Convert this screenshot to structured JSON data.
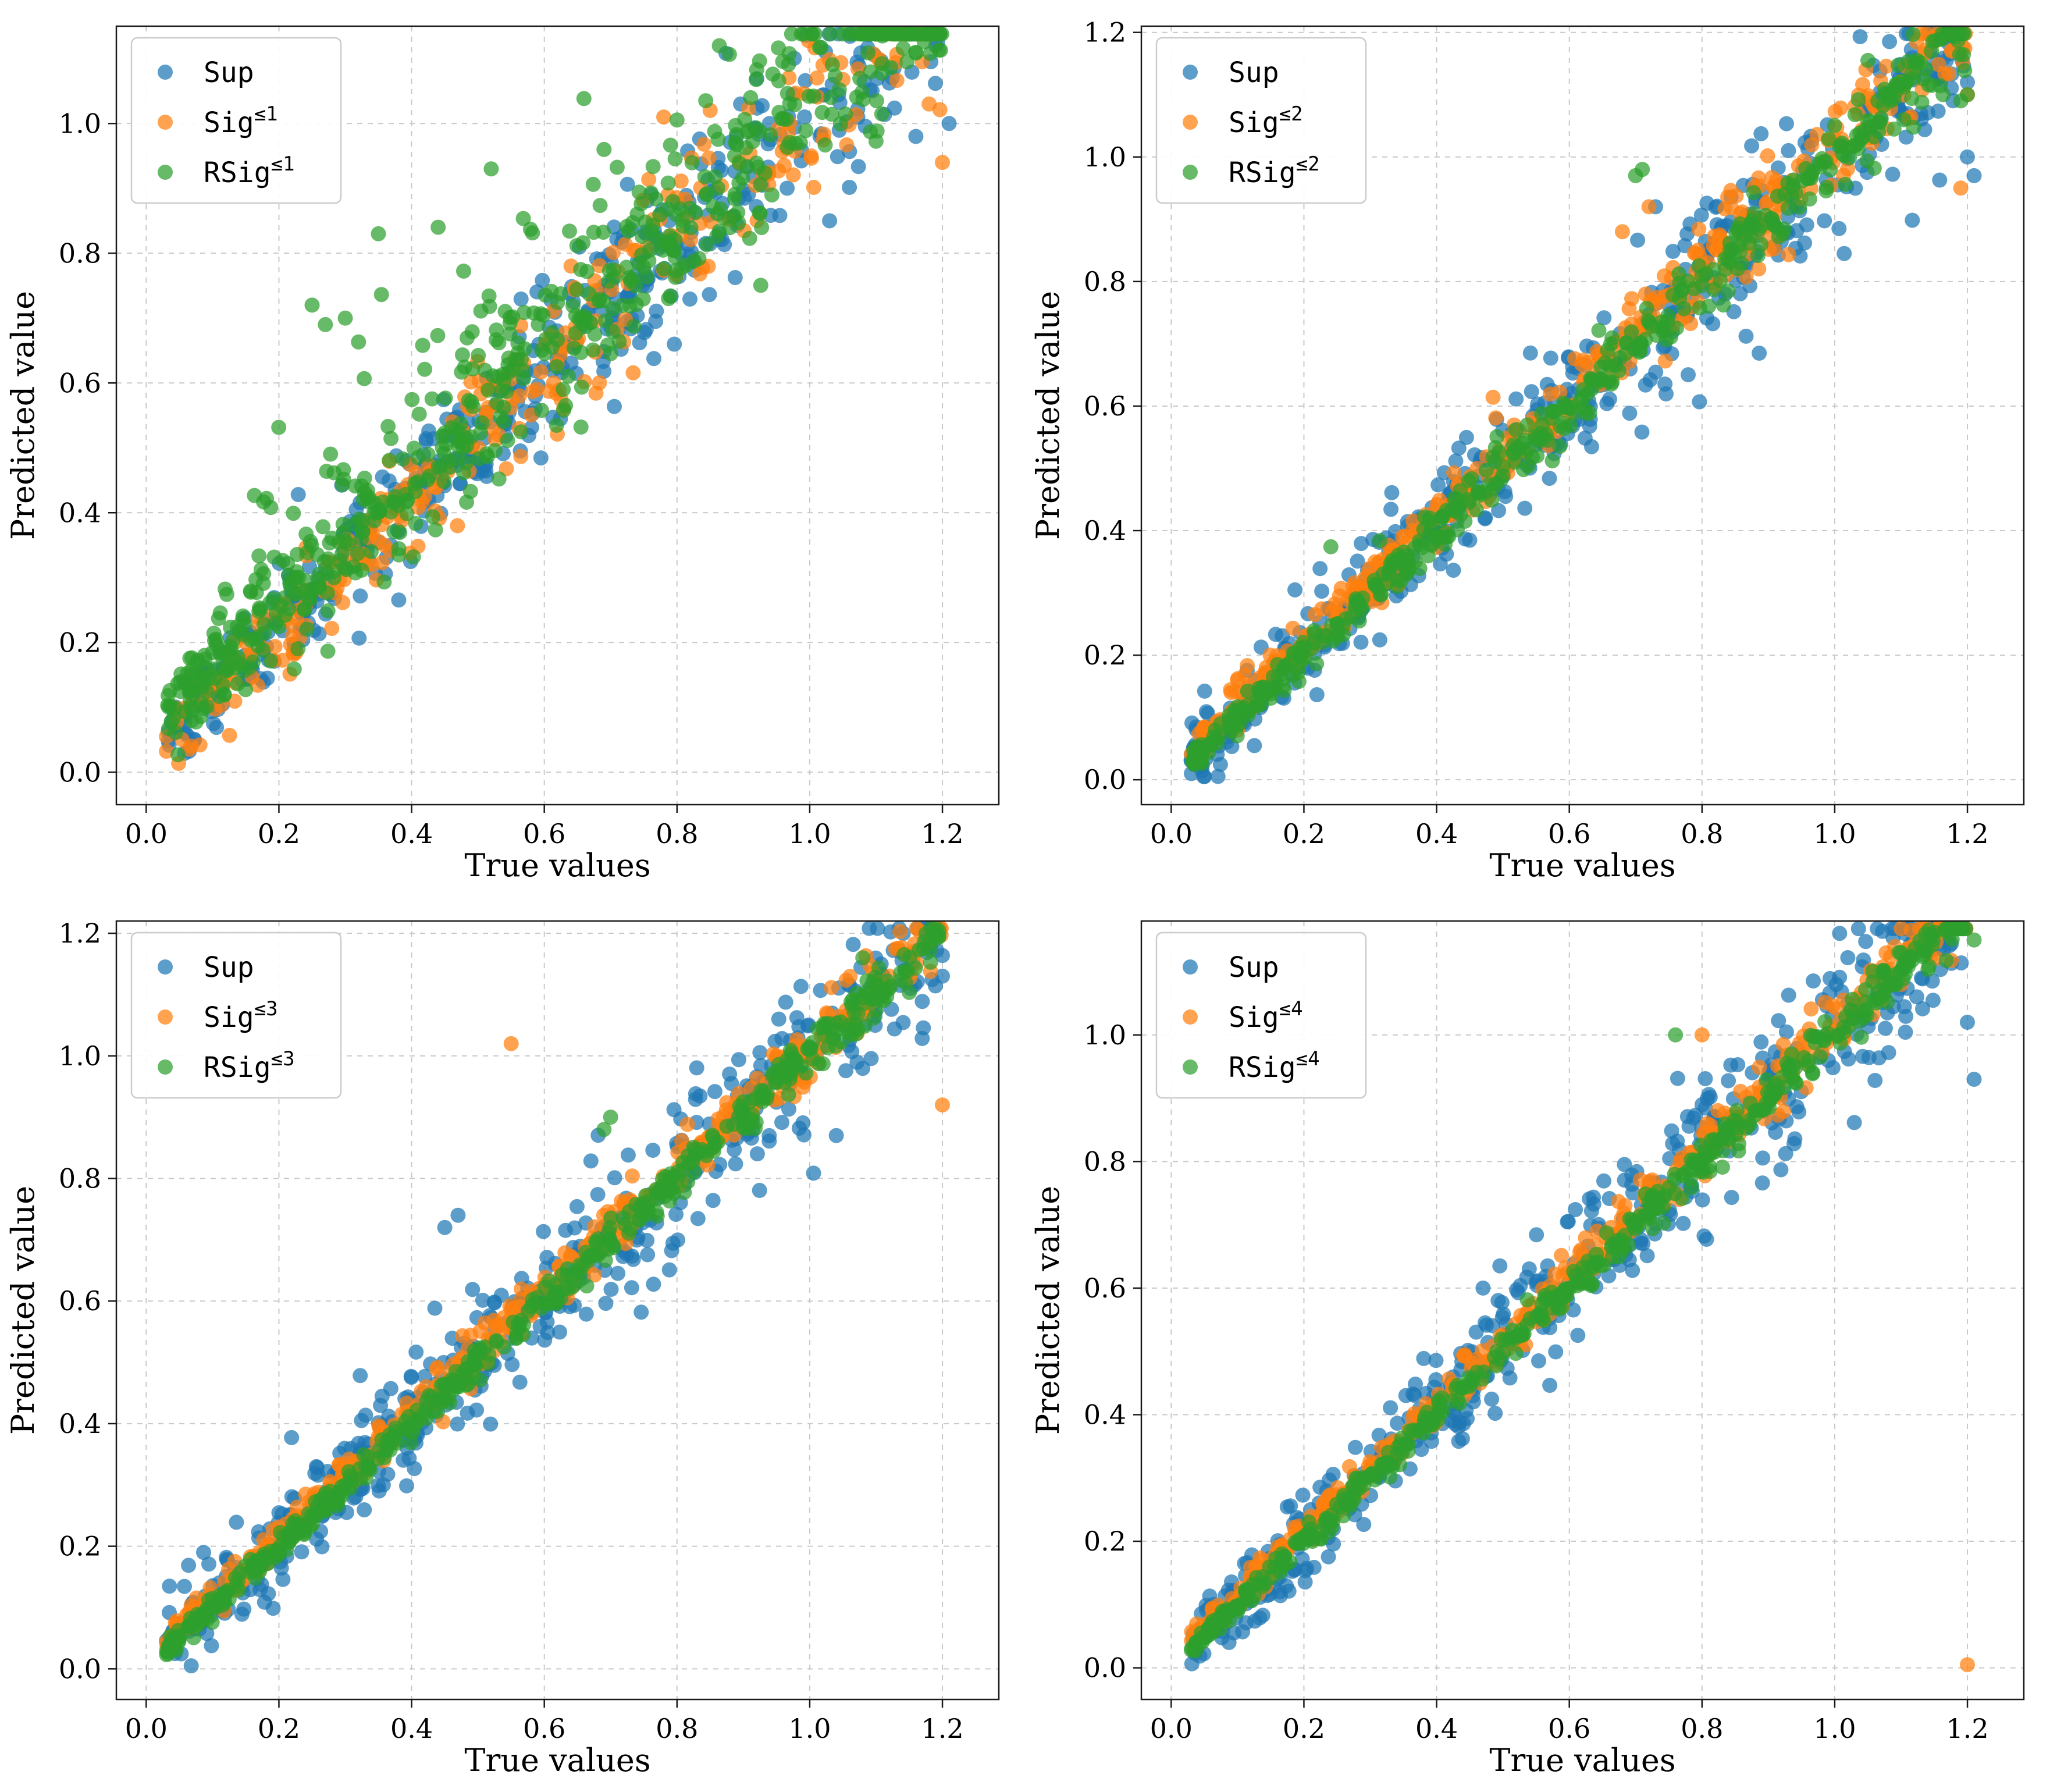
{
  "figure": {
    "background": "#ffffff",
    "grid_color": "#c9c9c9",
    "spine_color": "#1a1a1a",
    "marker_radius": 13,
    "marker_alpha": 0.72
  },
  "chart_data": [
    {
      "type": "scatter",
      "title": "",
      "xlabel": "True values",
      "ylabel": "Predicted value",
      "xlim": [
        -0.045,
        1.285
      ],
      "ylim": [
        -0.05,
        1.15
      ],
      "xticks": [
        0.0,
        0.2,
        0.4,
        0.6,
        0.8,
        1.0,
        1.2
      ],
      "yticks": [
        0.0,
        0.2,
        0.4,
        0.6,
        0.8,
        1.0
      ],
      "grid": true,
      "legend_position": "upper-left",
      "series": [
        {
          "name": "Sup",
          "label_base": "Sup",
          "label_sup": "",
          "color": "#1f77b4",
          "count": 520,
          "seed": 101,
          "noise": 0.055,
          "bias": 0.025,
          "outlier_frac": 0.02,
          "outlier_boost": 0.12,
          "extra": [
            [
              1.19,
              1.12
            ],
            [
              1.21,
              1.0
            ],
            [
              1.16,
              0.98
            ],
            [
              1.03,
              0.85
            ]
          ]
        },
        {
          "name": "Sig<=1",
          "label_base": "Sig",
          "label_sup": "≤1",
          "color": "#ff7f0e",
          "count": 300,
          "seed": 102,
          "noise": 0.05,
          "bias": 0.02,
          "outlier_frac": 0.0,
          "outlier_boost": 0,
          "extra": [
            [
              0.85,
              1.02
            ],
            [
              1.02,
              1.09
            ],
            [
              1.18,
              1.03
            ],
            [
              1.2,
              0.94
            ],
            [
              0.78,
              1.01
            ]
          ]
        },
        {
          "name": "RSig<=1",
          "label_base": "RSig",
          "label_sup": "≤1",
          "color": "#2ca02c",
          "count": 620,
          "seed": 103,
          "noise": 0.06,
          "bias": 0.05,
          "outlier_frac": 0.09,
          "outlier_boost": 0.22,
          "extra": [
            [
              0.52,
              0.93
            ],
            [
              0.3,
              0.7
            ],
            [
              0.27,
              0.69
            ],
            [
              0.25,
              0.72
            ],
            [
              0.35,
              0.83
            ],
            [
              0.44,
              0.84
            ],
            [
              0.69,
              0.96
            ]
          ]
        }
      ]
    },
    {
      "type": "scatter",
      "title": "",
      "xlabel": "True values",
      "ylabel": "Predicted value",
      "xlim": [
        -0.045,
        1.285
      ],
      "ylim": [
        -0.04,
        1.21
      ],
      "xticks": [
        0.0,
        0.2,
        0.4,
        0.6,
        0.8,
        1.0,
        1.2
      ],
      "yticks": [
        0.0,
        0.2,
        0.4,
        0.6,
        0.8,
        1.0,
        1.2
      ],
      "grid": true,
      "legend_position": "upper-left",
      "series": [
        {
          "name": "Sup",
          "label_base": "Sup",
          "label_sup": "",
          "color": "#1f77b4",
          "count": 520,
          "seed": 201,
          "noise": 0.05,
          "bias": 0.005,
          "outlier_frac": 0.015,
          "outlier_boost": 0.1,
          "extra": [
            [
              1.2,
              1.12
            ],
            [
              1.2,
              1.0
            ],
            [
              1.21,
              0.97
            ],
            [
              0.73,
              0.92
            ]
          ]
        },
        {
          "name": "Sig<=2",
          "label_base": "Sig",
          "label_sup": "≤2",
          "color": "#ff7f0e",
          "count": 420,
          "seed": 202,
          "noise": 0.027,
          "bias": 0.02,
          "outlier_frac": 0.0,
          "outlier_boost": 0,
          "extra": [
            [
              1.2,
              1.1
            ],
            [
              1.19,
              0.95
            ],
            [
              0.72,
              0.92
            ],
            [
              0.68,
              0.88
            ]
          ]
        },
        {
          "name": "RSig<=2",
          "label_base": "RSig",
          "label_sup": "≤2",
          "color": "#2ca02c",
          "count": 480,
          "seed": 203,
          "noise": 0.02,
          "bias": 0.0,
          "outlier_frac": 0.008,
          "outlier_boost": 0.12,
          "extra": [
            [
              1.05,
              1.155
            ],
            [
              1.2,
              1.1
            ],
            [
              1.19,
              1.09
            ],
            [
              0.71,
              0.98
            ],
            [
              0.7,
              0.97
            ]
          ]
        }
      ]
    },
    {
      "type": "scatter",
      "title": "",
      "xlabel": "True values",
      "ylabel": "Predicted value",
      "xlim": [
        -0.045,
        1.285
      ],
      "ylim": [
        -0.05,
        1.22
      ],
      "xticks": [
        0.0,
        0.2,
        0.4,
        0.6,
        0.8,
        1.0,
        1.2
      ],
      "yticks": [
        0.0,
        0.2,
        0.4,
        0.6,
        0.8,
        1.0,
        1.2
      ],
      "grid": true,
      "legend_position": "upper-left",
      "series": [
        {
          "name": "Sup",
          "label_base": "Sup",
          "label_sup": "",
          "color": "#1f77b4",
          "count": 520,
          "seed": 301,
          "noise": 0.05,
          "bias": 0.01,
          "outlier_frac": 0.015,
          "outlier_boost": 0.1,
          "extra": [
            [
              1.2,
              1.13
            ],
            [
              0.47,
              0.74
            ],
            [
              0.45,
              0.72
            ],
            [
              1.04,
              0.87
            ]
          ]
        },
        {
          "name": "Sig<=3",
          "label_base": "Sig",
          "label_sup": "≤3",
          "color": "#ff7f0e",
          "count": 420,
          "seed": 302,
          "noise": 0.02,
          "bias": 0.015,
          "outlier_frac": 0.0,
          "outlier_boost": 0,
          "extra": [
            [
              1.2,
              0.92
            ],
            [
              1.05,
              1.06
            ],
            [
              0.95,
              1.0
            ],
            [
              1.12,
              1.13
            ],
            [
              0.55,
              1.02
            ]
          ]
        },
        {
          "name": "RSig<=3",
          "label_base": "RSig",
          "label_sup": "≤3",
          "color": "#2ca02c",
          "count": 500,
          "seed": 303,
          "noise": 0.014,
          "bias": 0.0,
          "outlier_frac": 0.006,
          "outlier_boost": 0.1,
          "extra": [
            [
              1.08,
              1.16
            ],
            [
              0.7,
              0.9
            ],
            [
              0.69,
              0.88
            ]
          ]
        }
      ]
    },
    {
      "type": "scatter",
      "title": "",
      "xlabel": "True values",
      "ylabel": "Predicted value",
      "xlim": [
        -0.045,
        1.285
      ],
      "ylim": [
        -0.05,
        1.18
      ],
      "xticks": [
        0.0,
        0.2,
        0.4,
        0.6,
        0.8,
        1.0,
        1.2
      ],
      "yticks": [
        0.0,
        0.2,
        0.4,
        0.6,
        0.8,
        1.0
      ],
      "grid": true,
      "legend_position": "upper-left",
      "series": [
        {
          "name": "Sup",
          "label_base": "Sup",
          "label_sup": "",
          "color": "#1f77b4",
          "count": 520,
          "seed": 401,
          "noise": 0.05,
          "bias": 0.01,
          "outlier_frac": 0.015,
          "outlier_boost": 0.1,
          "extra": [
            [
              1.2,
              1.02
            ],
            [
              1.21,
              0.93
            ],
            [
              0.55,
              0.61
            ],
            [
              0.47,
              0.6
            ]
          ]
        },
        {
          "name": "Sig<=4",
          "label_base": "Sig",
          "label_sup": "≤4",
          "color": "#ff7f0e",
          "count": 420,
          "seed": 402,
          "noise": 0.018,
          "bias": 0.015,
          "outlier_frac": 0.0,
          "outlier_boost": 0,
          "extra": [
            [
              1.2,
              0.005
            ],
            [
              1.1,
              1.08
            ],
            [
              0.8,
              1.0
            ],
            [
              1.12,
              1.14
            ]
          ]
        },
        {
          "name": "RSig<=4",
          "label_base": "RSig",
          "label_sup": "≤4",
          "color": "#2ca02c",
          "count": 500,
          "seed": 403,
          "noise": 0.012,
          "bias": 0.0,
          "outlier_frac": 0.006,
          "outlier_boost": 0.1,
          "extra": [
            [
              1.21,
              1.15
            ],
            [
              1.1,
              1.13
            ],
            [
              0.76,
              1.0
            ]
          ]
        }
      ]
    }
  ]
}
